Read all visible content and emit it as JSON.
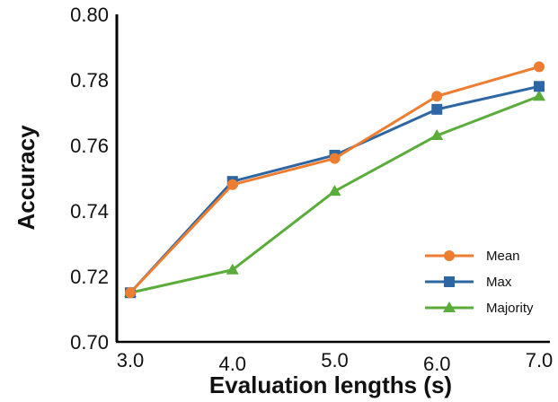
{
  "chart_data": {
    "type": "line",
    "title": "",
    "xlabel": "Evaluation lengths (s)",
    "ylabel": "Accuracy",
    "x": [
      3.0,
      4.0,
      5.0,
      6.0,
      7.0
    ],
    "x_tick_labels": [
      "3.0",
      "4.0",
      "5.0",
      "6.0",
      "7.0"
    ],
    "y_tick_labels": [
      "0.70",
      "0.72",
      "0.74",
      "0.76",
      "0.78",
      "0.80"
    ],
    "y_ticks": [
      0.7,
      0.72,
      0.74,
      0.76,
      0.78,
      0.8
    ],
    "xlim": [
      3.0,
      7.0
    ],
    "ylim": [
      0.7,
      0.8
    ],
    "grid": false,
    "legend_position": "bottom-right",
    "series": [
      {
        "name": "Mean",
        "values": [
          0.715,
          0.748,
          0.756,
          0.775,
          0.784
        ],
        "color": "#ed7d31",
        "marker": "circle"
      },
      {
        "name": "Max",
        "values": [
          0.715,
          0.749,
          0.757,
          0.771,
          0.778
        ],
        "color": "#2e65a3",
        "marker": "square"
      },
      {
        "name": "Majority",
        "values": [
          0.715,
          0.722,
          0.746,
          0.763,
          0.775
        ],
        "color": "#5aad3a",
        "marker": "triangle"
      }
    ]
  }
}
